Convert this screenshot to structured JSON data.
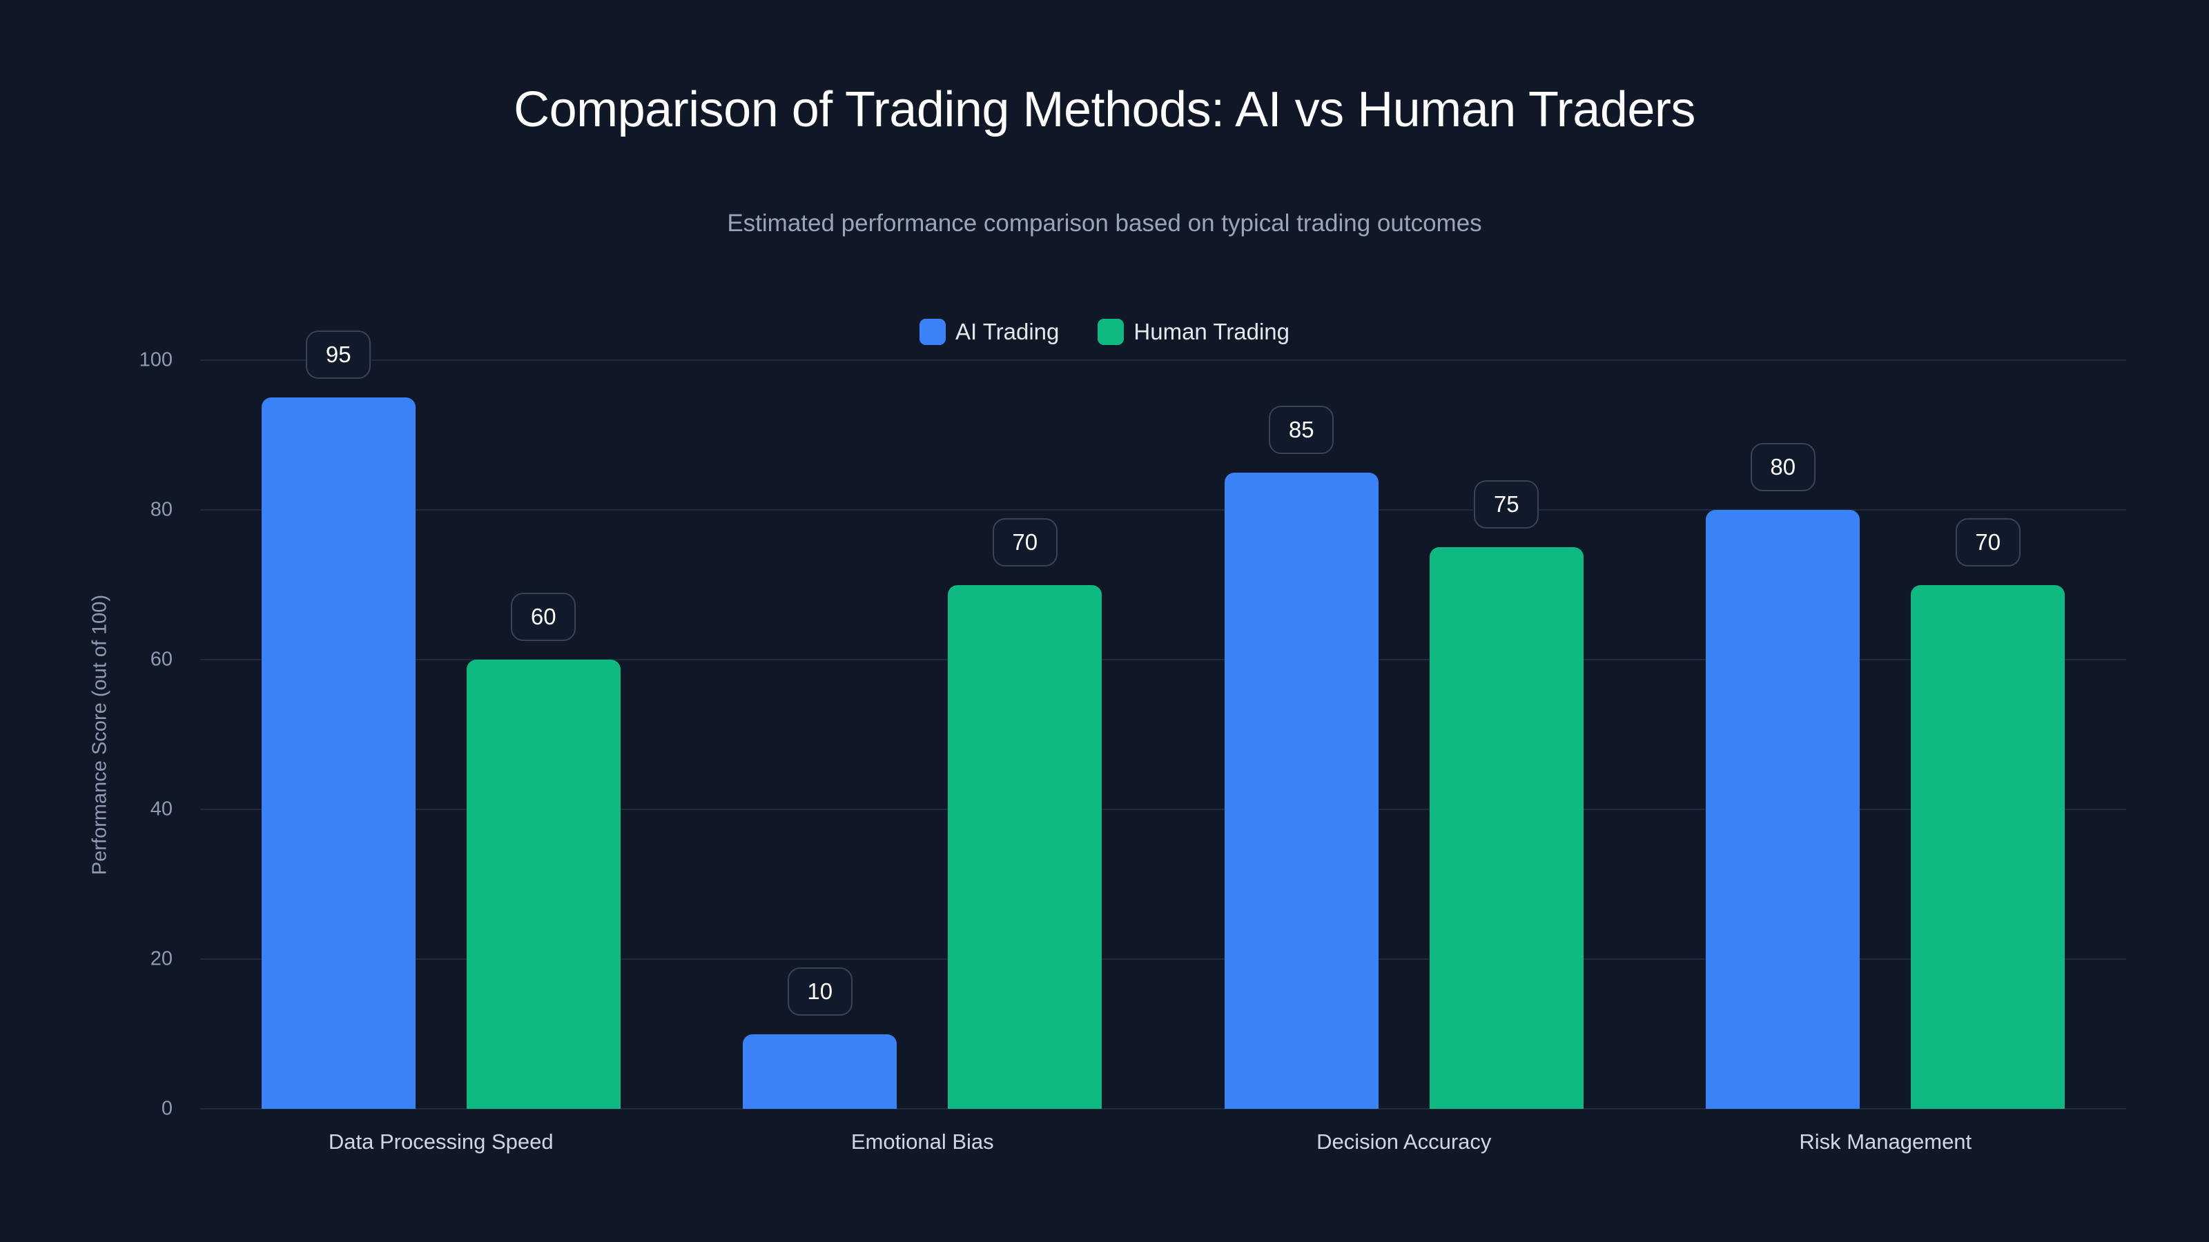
{
  "title": "Comparison of Trading Methods: AI vs Human Traders",
  "subtitle": "Estimated performance comparison based on typical trading outcomes",
  "legend": [
    {
      "label": "AI Trading",
      "color": "#3b82f6"
    },
    {
      "label": "Human Trading",
      "color": "#10b981"
    }
  ],
  "y_axis": {
    "label": "Performance Score (out of 100)",
    "ticks": [
      "0",
      "20",
      "40",
      "60",
      "80",
      "100"
    ]
  },
  "chart_data": {
    "type": "bar",
    "title": "Comparison of Trading Methods: AI vs Human Traders",
    "subtitle": "Estimated performance comparison based on typical trading outcomes",
    "xlabel": "",
    "ylabel": "Performance Score (out of 100)",
    "ylim": [
      0,
      100
    ],
    "yticks": [
      0,
      20,
      40,
      60,
      80,
      100
    ],
    "grid": true,
    "legend_position": "top-center",
    "categories": [
      "Data Processing Speed",
      "Emotional Bias",
      "Decision Accuracy",
      "Risk Management"
    ],
    "series": [
      {
        "name": "AI Trading",
        "color": "#3b82f6",
        "values": [
          95,
          10,
          85,
          80
        ]
      },
      {
        "name": "Human Trading",
        "color": "#10b981",
        "values": [
          60,
          70,
          75,
          70
        ]
      }
    ]
  }
}
